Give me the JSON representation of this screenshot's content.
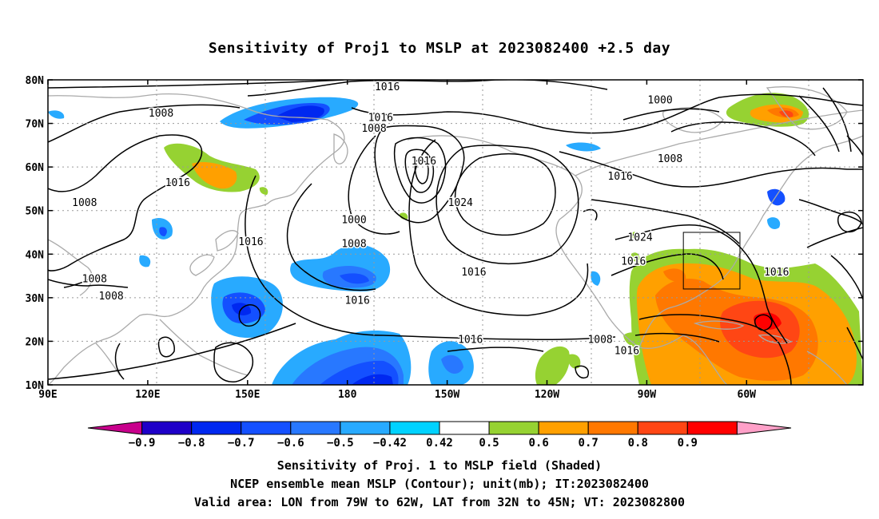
{
  "title": "Sensitivity of Proj1 to MSLP at 2023082400 +2.5 day",
  "lat_labels": [
    "80N",
    "70N",
    "60N",
    "50N",
    "40N",
    "30N",
    "20N",
    "10N"
  ],
  "lon_labels": [
    "90E",
    "120E",
    "150E",
    "180",
    "150W",
    "120W",
    "90W",
    "60W"
  ],
  "contour_labels": [
    {
      "text": "1016",
      "lon": -168,
      "lat": 78.5
    },
    {
      "text": "1016",
      "lon": -170,
      "lat": 71.5
    },
    {
      "text": "1008",
      "lon": -172,
      "lat": 69
    },
    {
      "text": "1000",
      "lon": -86,
      "lat": 75.5
    },
    {
      "text": "1008",
      "lon": 124,
      "lat": 72.5
    },
    {
      "text": "1016",
      "lon": -157,
      "lat": 61.5
    },
    {
      "text": "1008",
      "lon": -83,
      "lat": 62
    },
    {
      "text": "1016",
      "lon": -98,
      "lat": 58
    },
    {
      "text": "1016",
      "lon": 129,
      "lat": 56.5
    },
    {
      "text": "1008",
      "lon": 101,
      "lat": 52
    },
    {
      "text": "1024",
      "lon": -146,
      "lat": 52
    },
    {
      "text": "1000",
      "lon": -178,
      "lat": 48
    },
    {
      "text": "1008",
      "lon": -178,
      "lat": 42.5
    },
    {
      "text": "1016",
      "lon": 151,
      "lat": 43
    },
    {
      "text": "1024",
      "lon": -92,
      "lat": 44
    },
    {
      "text": "1016",
      "lon": -94,
      "lat": 38.5
    },
    {
      "text": "1016",
      "lon": -142,
      "lat": 36
    },
    {
      "text": "1016",
      "lon": -51,
      "lat": 36
    },
    {
      "text": "1008",
      "lon": 104,
      "lat": 34.5
    },
    {
      "text": "1008",
      "lon": 109,
      "lat": 30.5
    },
    {
      "text": "1016",
      "lon": -177,
      "lat": 29.5
    },
    {
      "text": "1016",
      "lon": -143,
      "lat": 20.5
    },
    {
      "text": "1008",
      "lon": -104,
      "lat": 20.5
    },
    {
      "text": "1016",
      "lon": -96,
      "lat": 18
    }
  ],
  "colorbar": {
    "labels": [
      "−0.9",
      "−0.8",
      "−0.7",
      "−0.6",
      "−0.5",
      "−0.42",
      "0.42",
      "0.5",
      "0.6",
      "0.7",
      "0.8",
      "0.9"
    ],
    "colors": [
      "#c8008c",
      "#1e00c8",
      "#0028f0",
      "#1450ff",
      "#2878ff",
      "#28aaff",
      "#00d2ff",
      "#ffffff",
      "#96d232",
      "#ffa000",
      "#ff7800",
      "#ff4614",
      "#ff0000",
      "#ffa0c8"
    ]
  },
  "valid_area": {
    "lon_min": -79,
    "lon_max": -62,
    "lat_min": 32,
    "lat_max": 45
  },
  "captions": [
    "Sensitivity of Proj. 1 to MSLP field (Shaded)",
    "NCEP ensemble mean MSLP (Contour); unit(mb); IT:2023082400",
    "Valid area: LON from 79W to 62W, LAT from 32N to 45N; VT: 2023082800"
  ]
}
